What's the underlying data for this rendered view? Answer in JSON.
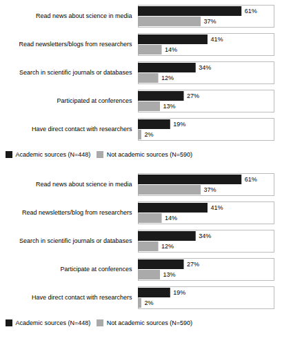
{
  "chart_data": [
    {
      "type": "bar",
      "orientation": "horizontal",
      "categories": [
        "Have direct contact with researchers",
        "Participated at conferences",
        "Search in scientific journals or databases",
        "Read newsletters/blogs from researchers",
        "Read news about science in media"
      ],
      "series": [
        {
          "name": "Academic sources (N=448)",
          "color": "#1a1a1a",
          "values": [
            19,
            27,
            34,
            41,
            61
          ],
          "value_labels": [
            "19%",
            "27%",
            "34%",
            "41%",
            "61%"
          ]
        },
        {
          "name": "Not academic sources (N=590)",
          "color": "#aaaaaa",
          "values": [
            2,
            13,
            12,
            14,
            37
          ],
          "value_labels": [
            "2%",
            "13%",
            "12%",
            "14%",
            "37%"
          ]
        }
      ],
      "xlim": [
        0,
        80
      ],
      "tick_labels": "y",
      "data_labels": true,
      "legend": "bottom",
      "grid": false
    },
    {
      "type": "bar",
      "orientation": "horizontal",
      "categories": [
        "Have direct contact with researchers",
        "Participate at conferences",
        "Search in scientific journals or databases",
        "Read newsletters/blog from researchers",
        "Read news about science in media"
      ],
      "series": [
        {
          "name": "Academic sources (N=448)",
          "color": "#1a1a1a",
          "values": [
            19,
            27,
            34,
            41,
            61
          ],
          "value_labels": [
            "19%",
            "27%",
            "34%",
            "41%",
            "61%"
          ]
        },
        {
          "name": "Not academic sources (N=590)",
          "color": "#aaaaaa",
          "values": [
            2,
            13,
            12,
            14,
            37
          ],
          "value_labels": [
            "2%",
            "13%",
            "12%",
            "14%",
            "37%"
          ]
        }
      ],
      "xlim": [
        0,
        80
      ],
      "tick_labels": "y",
      "data_labels": true,
      "legend": "bottom",
      "grid": false
    }
  ]
}
